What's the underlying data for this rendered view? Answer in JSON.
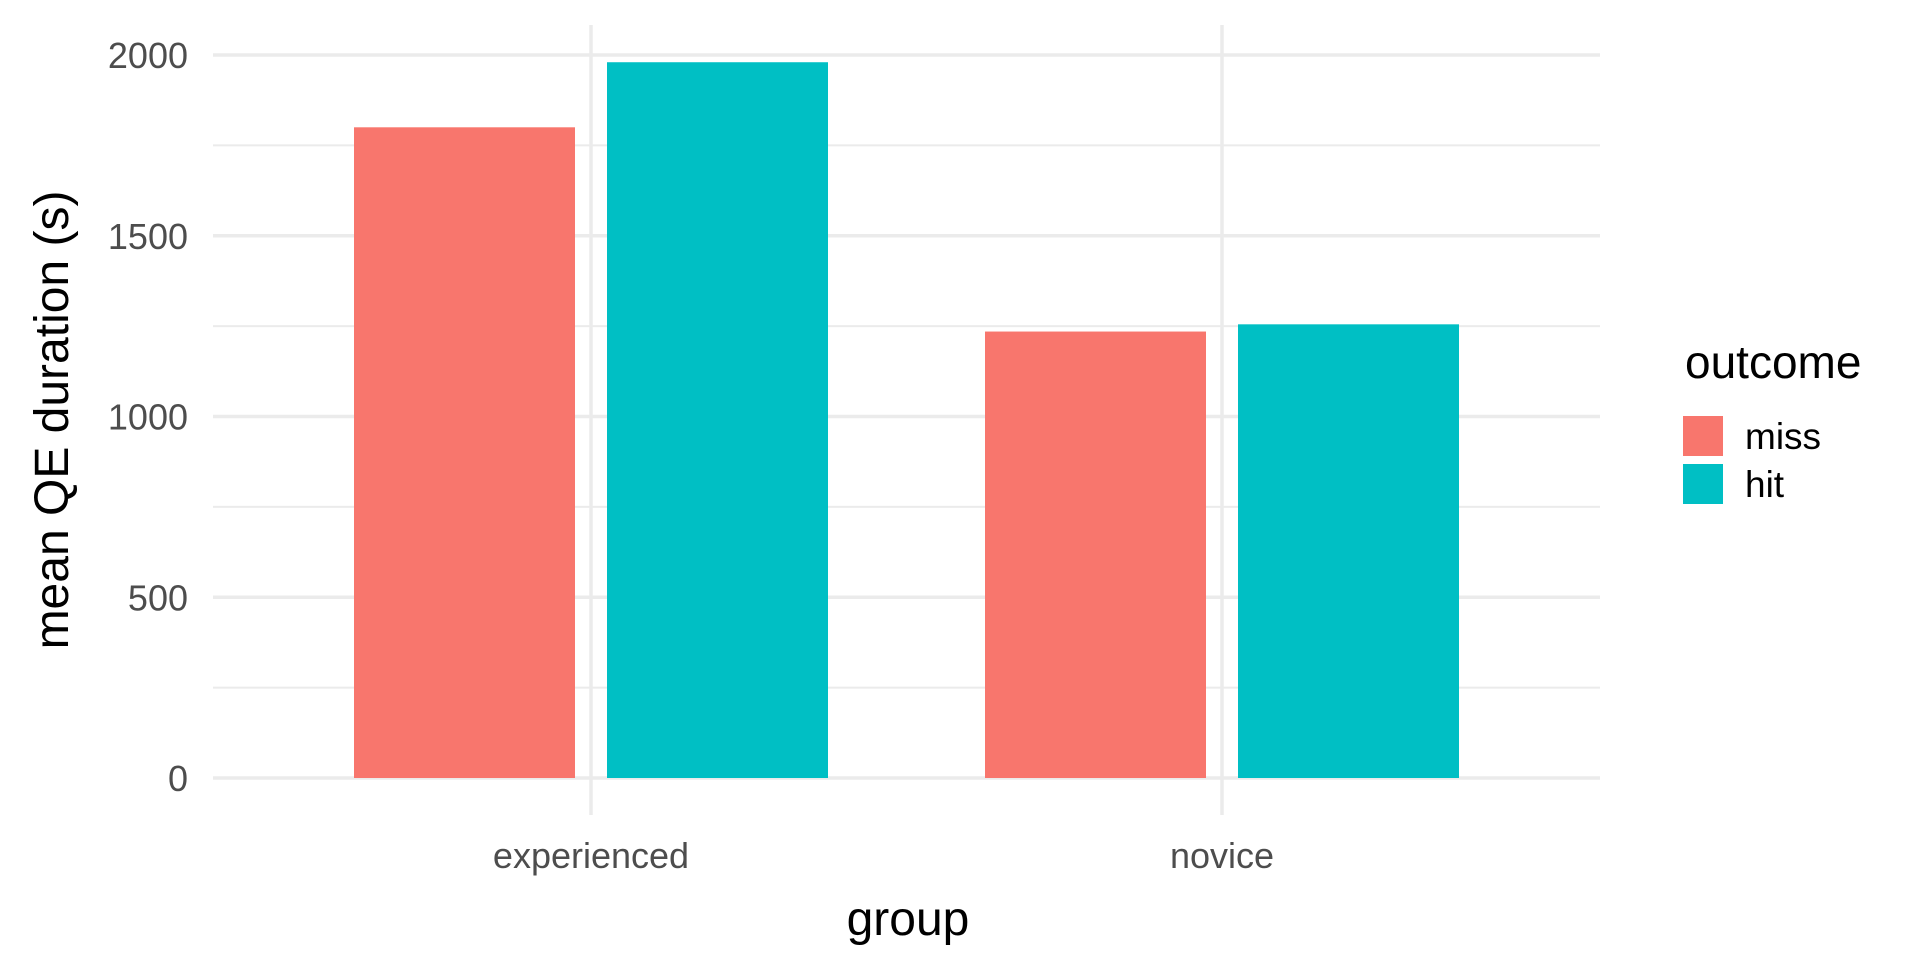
{
  "chart_data": {
    "type": "bar",
    "categories": [
      "experienced",
      "novice"
    ],
    "series": [
      {
        "name": "miss",
        "values": [
          1800,
          1235
        ],
        "color": "#F8766D"
      },
      {
        "name": "hit",
        "values": [
          1980,
          1255
        ],
        "color": "#00BFC4"
      }
    ],
    "xlabel": "group",
    "ylabel": "mean QE duration (s)",
    "ylim": [
      0,
      2000
    ],
    "yticks": [
      0,
      500,
      1000,
      1500,
      2000
    ],
    "grid": true,
    "legend": {
      "title": "outcome",
      "placement": "right",
      "entries": [
        "miss",
        "hit"
      ]
    }
  }
}
